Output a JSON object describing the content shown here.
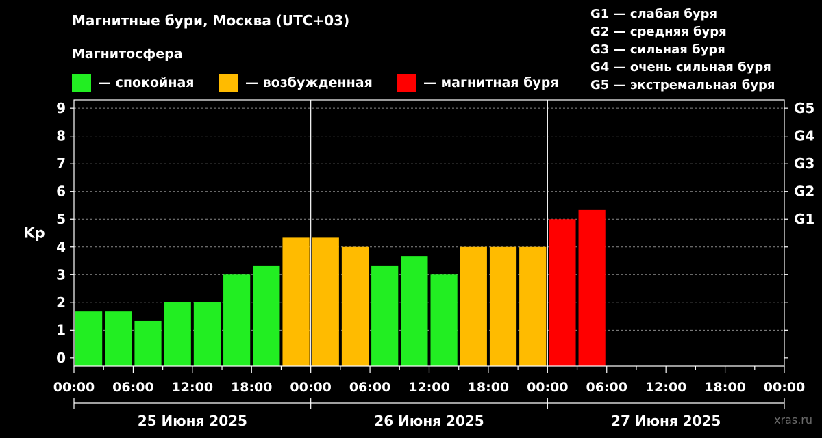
{
  "title": "Магнитные бури, Москва (UTC+03)",
  "legend": {
    "heading": "Магнитосфера",
    "items": [
      {
        "label": "— спокойная",
        "color": "#22ee22"
      },
      {
        "label": "— возбужденная",
        "color": "#ffbb00"
      },
      {
        "label": "— магнитная буря",
        "color": "#ff0000"
      }
    ]
  },
  "g_scale": [
    "G1 — слабая буря",
    "G2 — средняя буря",
    "G3 — сильная буря",
    "G4 — очень сильная буря",
    "G5 — экстремальная буря"
  ],
  "watermark": "xras.ru",
  "chart_data": {
    "type": "bar",
    "ylabel": "Kp",
    "ylim": [
      -0.3,
      9.3
    ],
    "yticks": [
      0,
      1,
      2,
      3,
      4,
      5,
      6,
      7,
      8,
      9
    ],
    "right_ticks": [
      {
        "value": 5,
        "label": "G1"
      },
      {
        "value": 6,
        "label": "G2"
      },
      {
        "value": 7,
        "label": "G3"
      },
      {
        "value": 8,
        "label": "G4"
      },
      {
        "value": 9,
        "label": "G5"
      }
    ],
    "xtick_labels": [
      "00:00",
      "06:00",
      "12:00",
      "18:00",
      "00:00",
      "06:00",
      "12:00",
      "18:00",
      "00:00",
      "06:00",
      "12:00",
      "18:00",
      "00:00"
    ],
    "days": [
      "25 Июня 2025",
      "26 Июня 2025",
      "27 Июня 2025"
    ],
    "grid": true,
    "colors": {
      "quiet": "#22ee22",
      "unsettled": "#ffbb00",
      "storm": "#ff0000"
    },
    "bars": [
      {
        "value": 1.67,
        "level": "quiet"
      },
      {
        "value": 1.67,
        "level": "quiet"
      },
      {
        "value": 1.33,
        "level": "quiet"
      },
      {
        "value": 2.0,
        "level": "quiet"
      },
      {
        "value": 2.0,
        "level": "quiet"
      },
      {
        "value": 3.0,
        "level": "quiet"
      },
      {
        "value": 3.33,
        "level": "quiet"
      },
      {
        "value": 4.33,
        "level": "unsettled"
      },
      {
        "value": 4.33,
        "level": "unsettled"
      },
      {
        "value": 4.0,
        "level": "unsettled"
      },
      {
        "value": 3.33,
        "level": "quiet"
      },
      {
        "value": 3.67,
        "level": "quiet"
      },
      {
        "value": 3.0,
        "level": "quiet"
      },
      {
        "value": 4.0,
        "level": "unsettled"
      },
      {
        "value": 4.0,
        "level": "unsettled"
      },
      {
        "value": 4.0,
        "level": "unsettled"
      },
      {
        "value": 5.0,
        "level": "storm"
      },
      {
        "value": 5.33,
        "level": "storm"
      }
    ]
  }
}
